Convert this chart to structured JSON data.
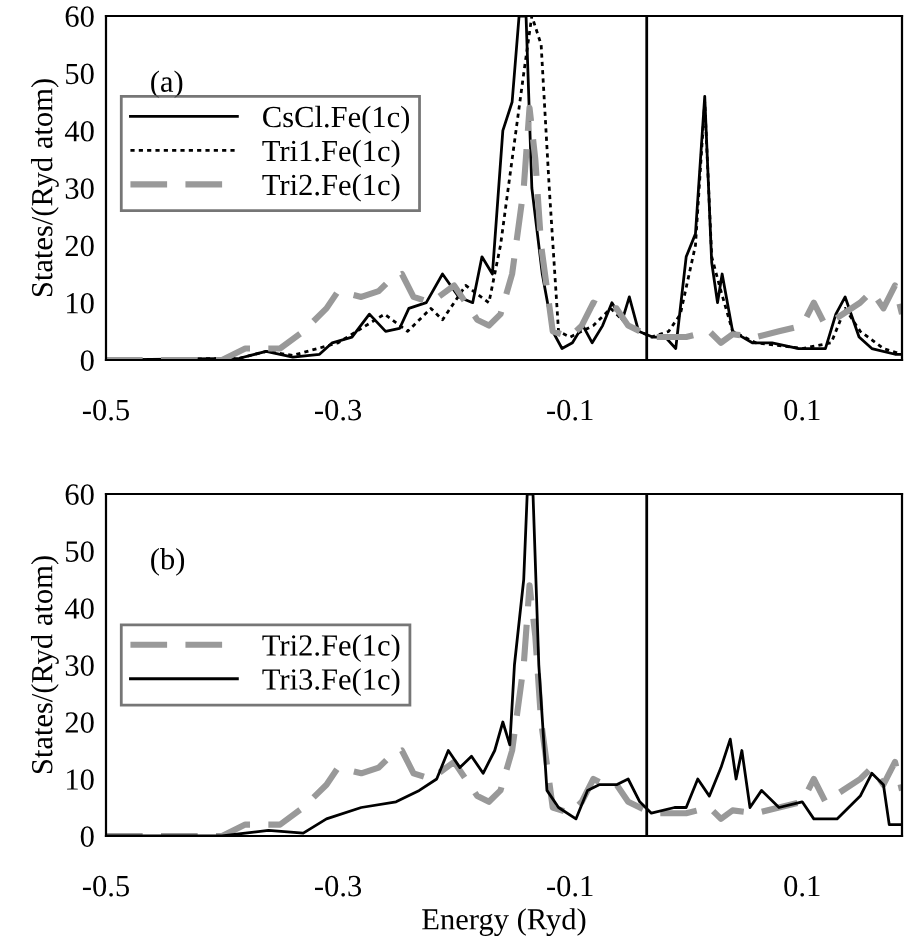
{
  "chart_data": [
    {
      "type": "line",
      "ylabel": "States/(Ryd atom)",
      "annotations": [
        "(a)"
      ],
      "xlim": [
        -0.5,
        0.186
      ],
      "xticks": [
        -0.5,
        -0.3,
        -0.1,
        0.1
      ],
      "ylim": [
        0,
        60
      ],
      "yticks": [
        0,
        10,
        20,
        30,
        40,
        50,
        60
      ],
      "grid": false,
      "legend": "left",
      "marker": "none",
      "ref_lines": [
        {
          "axis": "x",
          "value": -0.034,
          "color": "#000000",
          "line_style": "solid"
        }
      ],
      "series": [
        {
          "name": "CsCl.Fe(1c)",
          "color": "#000000",
          "line_style": "solid",
          "x": [
            -0.5,
            -0.385,
            -0.362,
            -0.339,
            -0.316,
            -0.305,
            -0.288,
            -0.273,
            -0.259,
            -0.247,
            -0.239,
            -0.224,
            -0.21,
            -0.196,
            -0.184,
            -0.176,
            -0.167,
            -0.158,
            -0.15,
            -0.144,
            -0.138,
            -0.133,
            -0.124,
            -0.115,
            -0.107,
            -0.098,
            -0.089,
            -0.081,
            -0.072,
            -0.064,
            -0.055,
            -0.049,
            -0.041,
            -0.029,
            -0.018,
            -0.009,
            0.0,
            0.008,
            0.016,
            0.022,
            0.027,
            0.031,
            0.04,
            0.057,
            0.074,
            0.097,
            0.12,
            0.129,
            0.137,
            0.149,
            0.16,
            0.18,
            0.186
          ],
          "values": [
            0,
            0.3,
            1.5,
            0.5,
            1,
            3,
            4,
            8,
            5,
            5.5,
            9,
            10,
            15,
            11,
            10,
            18,
            15,
            40,
            45,
            60,
            60,
            30,
            15,
            5,
            2,
            3,
            6,
            3,
            6,
            10,
            7,
            11,
            5,
            4,
            4,
            2,
            18,
            22,
            46,
            17,
            10,
            15,
            5,
            3,
            3,
            2,
            2,
            8,
            11,
            4,
            2,
            1,
            1
          ]
        },
        {
          "name": "Tri1.Fe(1c)",
          "color": "#000000",
          "line_style": "dotted",
          "x": [
            -0.5,
            -0.385,
            -0.362,
            -0.339,
            -0.3,
            -0.26,
            -0.24,
            -0.22,
            -0.21,
            -0.2,
            -0.19,
            -0.17,
            -0.16,
            -0.15,
            -0.14,
            -0.133,
            -0.125,
            -0.118,
            -0.11,
            -0.1,
            -0.08,
            -0.065,
            -0.05,
            -0.03,
            -0.015,
            -0.005,
            0.008,
            0.016,
            0.022,
            0.03,
            0.04,
            0.06,
            0.1,
            0.125,
            0.137,
            0.15,
            0.17,
            0.186
          ],
          "values": [
            0,
            0.3,
            1.5,
            0.8,
            3,
            8,
            5,
            9,
            7,
            10,
            13,
            10,
            20,
            35,
            50,
            60,
            55,
            30,
            5,
            4,
            6,
            9,
            6,
            4,
            5,
            8,
            20,
            45,
            18,
            12,
            5,
            3,
            2,
            3,
            9,
            5,
            2,
            1
          ]
        },
        {
          "name": "Tri2.Fe(1c)",
          "color": "#999999",
          "line_style": "dashed",
          "x": [
            -0.5,
            -0.4,
            -0.38,
            -0.35,
            -0.33,
            -0.31,
            -0.3,
            -0.28,
            -0.265,
            -0.255,
            -0.245,
            -0.235,
            -0.22,
            -0.2,
            -0.19,
            -0.18,
            -0.17,
            -0.16,
            -0.15,
            -0.14,
            -0.135,
            -0.13,
            -0.125,
            -0.115,
            -0.1,
            -0.09,
            -0.08,
            -0.07,
            -0.06,
            -0.05,
            -0.03,
            0.0,
            0.02,
            0.03,
            0.04,
            0.06,
            0.08,
            0.1,
            0.11,
            0.12,
            0.135,
            0.15,
            0.16,
            0.17,
            0.18,
            0.186
          ],
          "values": [
            0,
            0,
            2,
            2,
            5,
            9,
            12,
            11,
            12,
            14,
            15,
            11,
            10,
            13,
            10,
            7,
            6,
            8,
            15,
            30,
            44,
            35,
            20,
            5,
            4,
            6,
            10,
            9,
            9,
            6,
            4,
            4,
            5,
            3,
            4.5,
            4,
            5,
            6,
            10,
            6,
            8,
            10,
            12,
            9,
            13,
            8
          ]
        }
      ]
    },
    {
      "type": "line",
      "xlabel": "Energy (Ryd)",
      "ylabel": "States/(Ryd atom)",
      "annotations": [
        "(b)"
      ],
      "xlim": [
        -0.5,
        0.186
      ],
      "xticks": [
        -0.5,
        -0.3,
        -0.1,
        0.1
      ],
      "ylim": [
        0,
        60
      ],
      "yticks": [
        0,
        10,
        20,
        30,
        40,
        50,
        60
      ],
      "grid": false,
      "legend": "left",
      "marker": "none",
      "ref_lines": [
        {
          "axis": "x",
          "value": -0.034,
          "color": "#000000",
          "line_style": "solid"
        }
      ],
      "series": [
        {
          "name": "Tri2.Fe(1c)",
          "color": "#999999",
          "line_style": "dashed",
          "x": [
            -0.5,
            -0.4,
            -0.38,
            -0.35,
            -0.33,
            -0.31,
            -0.3,
            -0.28,
            -0.265,
            -0.255,
            -0.245,
            -0.235,
            -0.22,
            -0.2,
            -0.19,
            -0.18,
            -0.17,
            -0.16,
            -0.15,
            -0.14,
            -0.135,
            -0.13,
            -0.125,
            -0.115,
            -0.1,
            -0.09,
            -0.08,
            -0.07,
            -0.06,
            -0.05,
            -0.03,
            0.0,
            0.02,
            0.03,
            0.04,
            0.06,
            0.08,
            0.1,
            0.11,
            0.12,
            0.135,
            0.15,
            0.16,
            0.17,
            0.18,
            0.186
          ],
          "values": [
            0,
            0,
            2,
            2,
            5,
            9,
            12,
            11,
            12,
            14,
            15,
            11,
            10,
            13,
            10,
            7,
            6,
            8,
            15,
            30,
            44,
            35,
            20,
            5,
            4,
            6,
            10,
            9,
            9,
            6,
            4,
            4,
            5,
            3,
            4.5,
            4,
            5,
            6,
            10,
            6,
            8,
            10,
            12,
            9,
            13,
            8
          ]
        },
        {
          "name": "Tri3.Fe(1c)",
          "color": "#000000",
          "line_style": "solid",
          "x": [
            -0.5,
            -0.4,
            -0.38,
            -0.36,
            -0.33,
            -0.31,
            -0.28,
            -0.25,
            -0.23,
            -0.215,
            -0.205,
            -0.195,
            -0.185,
            -0.175,
            -0.165,
            -0.158,
            -0.152,
            -0.148,
            -0.14,
            -0.137,
            -0.132,
            -0.127,
            -0.12,
            -0.11,
            -0.095,
            -0.085,
            -0.075,
            -0.06,
            -0.05,
            -0.04,
            -0.03,
            -0.01,
            0.0,
            0.01,
            0.02,
            0.03,
            0.038,
            0.043,
            0.048,
            0.055,
            0.065,
            0.08,
            0.1,
            0.11,
            0.13,
            0.15,
            0.16,
            0.17,
            0.175,
            0.186
          ],
          "values": [
            0,
            0,
            0.5,
            1,
            0.5,
            3,
            5,
            6,
            8,
            10,
            15,
            12,
            14,
            11,
            15,
            20,
            16,
            30,
            45,
            60,
            60,
            30,
            8,
            5,
            3,
            8,
            9,
            9,
            10,
            6,
            4,
            5,
            5,
            10,
            7,
            12,
            17,
            10,
            15,
            5,
            8,
            5,
            6,
            3,
            3,
            7,
            11,
            9,
            2,
            2
          ]
        }
      ]
    }
  ]
}
